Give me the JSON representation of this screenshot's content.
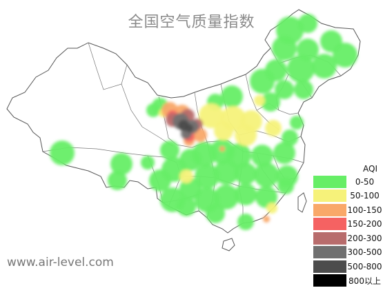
{
  "title": "全国空气质量指数",
  "watermark": "www.air-level.com",
  "legend": {
    "header": "AQI",
    "items": [
      {
        "label": "0-50",
        "color": "#66ee66"
      },
      {
        "label": "50-100",
        "color": "#f6f27a"
      },
      {
        "label": "100-150",
        "color": "#f9a869"
      },
      {
        "label": "150-200",
        "color": "#f56262"
      },
      {
        "label": "200-300",
        "color": "#b86c6c"
      },
      {
        "label": "300-500",
        "color": "#707070"
      },
      {
        "label": "500-800",
        "color": "#4c4c4c"
      },
      {
        "label": "800以上",
        "color": "#000000"
      }
    ]
  }
}
